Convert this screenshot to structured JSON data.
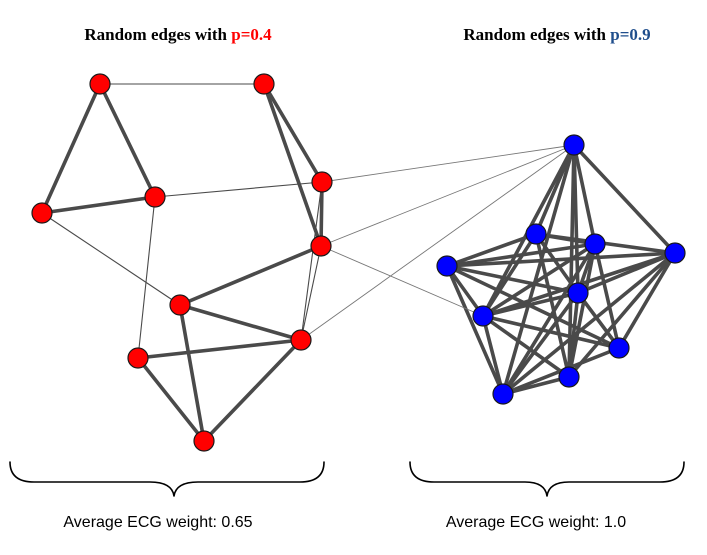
{
  "left_panel": {
    "title_prefix": "Random edges with ",
    "title_highlight": "p=0.4",
    "highlight_color": "#ff0000",
    "node_color": "#ff0000",
    "caption": "Average ECG weight: 0.65",
    "node_names": [
      "l0",
      "l1",
      "l2",
      "l3",
      "l4",
      "l5",
      "l6",
      "l7",
      "l8",
      "l9"
    ],
    "edges": [
      {
        "from": "l0",
        "to": "l2",
        "strength": "strong"
      },
      {
        "from": "l0",
        "to": "l3",
        "strength": "strong"
      },
      {
        "from": "l2",
        "to": "l3",
        "strength": "strong"
      },
      {
        "from": "l1",
        "to": "l4",
        "strength": "strong"
      },
      {
        "from": "l1",
        "to": "l5",
        "strength": "strong"
      },
      {
        "from": "l4",
        "to": "l5",
        "strength": "strong"
      },
      {
        "from": "l6",
        "to": "l8",
        "strength": "strong"
      },
      {
        "from": "l6",
        "to": "l9",
        "strength": "strong"
      },
      {
        "from": "l6",
        "to": "l5",
        "strength": "strong"
      },
      {
        "from": "l7",
        "to": "l8",
        "strength": "strong"
      },
      {
        "from": "l8",
        "to": "l9",
        "strength": "strong"
      },
      {
        "from": "l7",
        "to": "l9",
        "strength": "strong"
      },
      {
        "from": "l0",
        "to": "l1",
        "strength": "weak"
      },
      {
        "from": "l3",
        "to": "l4",
        "strength": "weak"
      },
      {
        "from": "l2",
        "to": "l6",
        "strength": "weak"
      },
      {
        "from": "l3",
        "to": "l7",
        "strength": "weak"
      },
      {
        "from": "l5",
        "to": "l8",
        "strength": "weak"
      },
      {
        "from": "l4",
        "to": "l8",
        "strength": "weak"
      }
    ]
  },
  "right_panel": {
    "title_prefix": "Random edges with ",
    "title_highlight": "p=0.9",
    "highlight_color": "#1f4e8c",
    "node_color": "#0000ff",
    "caption": "Average ECG weight: 1.0",
    "node_names": [
      "r0",
      "r1",
      "r2",
      "r3",
      "r4",
      "r5",
      "r6",
      "r7",
      "r8",
      "r9"
    ],
    "edges": [
      {
        "from": "r0",
        "to": "r1",
        "strength": "strong"
      },
      {
        "from": "r0",
        "to": "r2",
        "strength": "strong"
      },
      {
        "from": "r0",
        "to": "r3",
        "strength": "strong"
      },
      {
        "from": "r0",
        "to": "r5",
        "strength": "strong"
      },
      {
        "from": "r0",
        "to": "r6",
        "strength": "strong"
      },
      {
        "from": "r0",
        "to": "r8",
        "strength": "strong"
      },
      {
        "from": "r0",
        "to": "r9",
        "strength": "strong"
      },
      {
        "from": "r1",
        "to": "r2",
        "strength": "strong"
      },
      {
        "from": "r1",
        "to": "r3",
        "strength": "strong"
      },
      {
        "from": "r1",
        "to": "r4",
        "strength": "strong"
      },
      {
        "from": "r1",
        "to": "r5",
        "strength": "strong"
      },
      {
        "from": "r1",
        "to": "r6",
        "strength": "strong"
      },
      {
        "from": "r1",
        "to": "r8",
        "strength": "strong"
      },
      {
        "from": "r2",
        "to": "r4",
        "strength": "strong"
      },
      {
        "from": "r2",
        "to": "r5",
        "strength": "strong"
      },
      {
        "from": "r2",
        "to": "r6",
        "strength": "strong"
      },
      {
        "from": "r2",
        "to": "r7",
        "strength": "strong"
      },
      {
        "from": "r2",
        "to": "r8",
        "strength": "strong"
      },
      {
        "from": "r3",
        "to": "r4",
        "strength": "strong"
      },
      {
        "from": "r3",
        "to": "r5",
        "strength": "strong"
      },
      {
        "from": "r3",
        "to": "r6",
        "strength": "strong"
      },
      {
        "from": "r3",
        "to": "r7",
        "strength": "strong"
      },
      {
        "from": "r3",
        "to": "r8",
        "strength": "strong"
      },
      {
        "from": "r3",
        "to": "r9",
        "strength": "strong"
      },
      {
        "from": "r4",
        "to": "r5",
        "strength": "strong"
      },
      {
        "from": "r4",
        "to": "r6",
        "strength": "strong"
      },
      {
        "from": "r4",
        "to": "r7",
        "strength": "strong"
      },
      {
        "from": "r5",
        "to": "r6",
        "strength": "strong"
      },
      {
        "from": "r5",
        "to": "r7",
        "strength": "strong"
      },
      {
        "from": "r5",
        "to": "r8",
        "strength": "strong"
      },
      {
        "from": "r5",
        "to": "r9",
        "strength": "strong"
      },
      {
        "from": "r6",
        "to": "r7",
        "strength": "strong"
      },
      {
        "from": "r6",
        "to": "r8",
        "strength": "strong"
      },
      {
        "from": "r6",
        "to": "r9",
        "strength": "strong"
      },
      {
        "from": "r7",
        "to": "r9",
        "strength": "strong"
      },
      {
        "from": "r8",
        "to": "r9",
        "strength": "strong"
      },
      {
        "from": "r2",
        "to": "r9",
        "strength": "strong"
      },
      {
        "from": "r4",
        "to": "r9",
        "strength": "strong"
      }
    ]
  },
  "bridge_edges": [
    {
      "from": "l4",
      "to": "r0"
    },
    {
      "from": "l5",
      "to": "r0"
    },
    {
      "from": "l8",
      "to": "r0"
    },
    {
      "from": "l5",
      "to": "r6"
    }
  ]
}
